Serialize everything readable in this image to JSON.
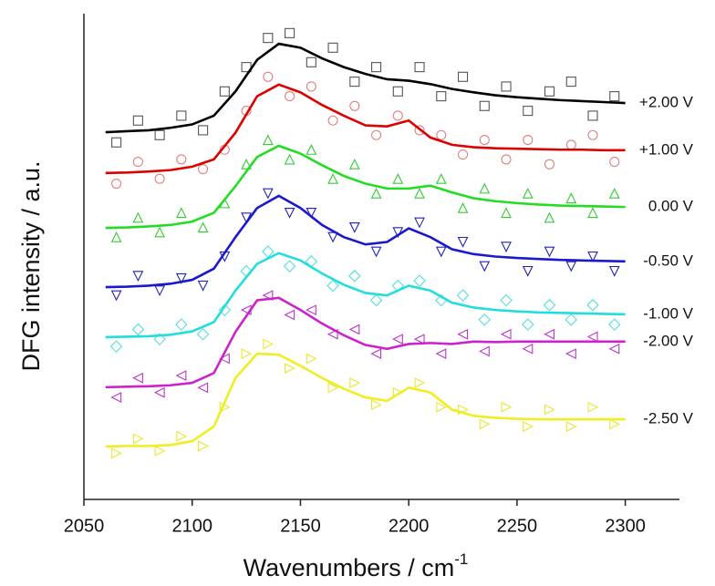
{
  "chart_data": {
    "type": "line",
    "xlabel": "Wavenumbers / cm",
    "xlabel_sup": "-1",
    "ylabel": "DFG intensity / a.u.",
    "xlim": [
      2050,
      2325
    ],
    "ylim": [
      0,
      10
    ],
    "xticks": [
      2050,
      2100,
      2150,
      2200,
      2250,
      2300
    ],
    "x": [
      2060,
      2070,
      2080,
      2090,
      2100,
      2110,
      2120,
      2130,
      2140,
      2150,
      2160,
      2170,
      2180,
      2190,
      2200,
      2210,
      2220,
      2230,
      2240,
      2250,
      2260,
      2270,
      2280,
      2290,
      2300
    ],
    "points_x": [
      2065,
      2075,
      2085,
      2095,
      2105,
      2115,
      2125,
      2135,
      2145,
      2155,
      2165,
      2175,
      2185,
      2195,
      2205,
      2215,
      2225,
      2235,
      2245,
      2255,
      2265,
      2275,
      2285,
      2295
    ],
    "series": [
      {
        "name": "+2.00 V",
        "color": "#000000",
        "point_color": "#555555",
        "marker": "square",
        "values": [
          7.56,
          7.58,
          7.6,
          7.65,
          7.72,
          7.9,
          8.4,
          9.05,
          9.38,
          9.3,
          9.08,
          8.9,
          8.76,
          8.65,
          8.62,
          8.55,
          8.45,
          8.38,
          8.32,
          8.28,
          8.25,
          8.22,
          8.2,
          8.18,
          8.16
        ],
        "points": [
          7.35,
          7.8,
          7.5,
          7.9,
          7.6,
          8.4,
          8.9,
          9.5,
          9.6,
          9.0,
          9.3,
          8.6,
          8.9,
          8.4,
          8.9,
          8.3,
          8.7,
          8.1,
          8.5,
          8.0,
          8.4,
          8.6,
          7.9,
          8.3
        ]
      },
      {
        "name": "+1.00 V",
        "color": "#dd0000",
        "point_color": "#e08080",
        "marker": "circle",
        "values": [
          6.72,
          6.73,
          6.75,
          6.78,
          6.85,
          7.0,
          7.55,
          8.3,
          8.54,
          8.38,
          8.12,
          7.9,
          7.7,
          7.68,
          7.8,
          7.45,
          7.3,
          7.25,
          7.23,
          7.22,
          7.21,
          7.2,
          7.2,
          7.19,
          7.19
        ],
        "points": [
          6.5,
          6.95,
          6.6,
          7.0,
          6.8,
          7.2,
          8.0,
          8.7,
          8.3,
          8.5,
          7.8,
          8.1,
          7.5,
          7.9,
          7.6,
          7.5,
          7.1,
          7.4,
          7.0,
          7.4,
          6.9,
          7.3,
          7.5,
          6.95
        ]
      },
      {
        "name": "0.00 V",
        "color": "#22dd22",
        "point_color": "#33cc33",
        "marker": "triangle-up",
        "values": [
          5.59,
          5.6,
          5.62,
          5.65,
          5.72,
          5.9,
          6.45,
          7.05,
          7.28,
          7.12,
          6.88,
          6.66,
          6.5,
          6.4,
          6.4,
          6.46,
          6.32,
          6.2,
          6.14,
          6.1,
          6.07,
          6.05,
          6.04,
          6.03,
          6.02
        ],
        "points": [
          5.4,
          5.8,
          5.5,
          5.9,
          5.6,
          6.1,
          6.9,
          7.4,
          7.0,
          7.2,
          6.6,
          6.9,
          6.3,
          6.6,
          6.3,
          6.6,
          6.0,
          6.4,
          5.9,
          6.3,
          5.8,
          6.2,
          5.9,
          6.3
        ]
      },
      {
        "name": "-0.50 V",
        "color": "#1a1acc",
        "point_color": "#2222bb",
        "marker": "triangle-down",
        "values": [
          4.37,
          4.38,
          4.4,
          4.44,
          4.52,
          4.75,
          5.4,
          6.0,
          6.25,
          6.0,
          5.65,
          5.4,
          5.25,
          5.3,
          5.58,
          5.4,
          5.15,
          5.05,
          5.0,
          4.97,
          4.95,
          4.93,
          4.92,
          4.91,
          4.9
        ],
        "points": [
          4.2,
          4.6,
          4.3,
          4.55,
          4.4,
          5.0,
          5.8,
          6.3,
          5.9,
          5.9,
          5.4,
          5.6,
          5.1,
          5.5,
          5.7,
          5.1,
          5.3,
          4.8,
          5.2,
          4.7,
          5.1,
          4.8,
          5.0,
          4.7
        ]
      },
      {
        "name": "-1.00 V",
        "color": "#22dddd",
        "point_color": "#55dddd",
        "marker": "diamond",
        "values": [
          3.34,
          3.35,
          3.36,
          3.39,
          3.46,
          3.65,
          4.3,
          4.85,
          5.07,
          4.92,
          4.65,
          4.42,
          4.25,
          4.2,
          4.4,
          4.3,
          4.05,
          3.95,
          3.9,
          3.87,
          3.85,
          3.84,
          3.83,
          3.82,
          3.81
        ],
        "points": [
          3.15,
          3.5,
          3.3,
          3.6,
          3.4,
          3.9,
          4.7,
          5.1,
          4.8,
          4.9,
          4.4,
          4.6,
          4.1,
          4.4,
          4.5,
          4.1,
          4.2,
          3.7,
          4.1,
          3.6,
          4.0,
          3.7,
          4.0,
          3.6
        ]
      },
      {
        "name": "-2.00 V",
        "color": "#cc22cc",
        "point_color": "#bb33cc",
        "marker": "triangle-left",
        "values": [
          2.31,
          2.32,
          2.33,
          2.35,
          2.4,
          2.6,
          3.45,
          4.1,
          4.15,
          3.9,
          3.62,
          3.38,
          3.18,
          3.1,
          3.2,
          3.22,
          3.2,
          3.25,
          3.24,
          3.25,
          3.25,
          3.25,
          3.25,
          3.25,
          3.25
        ],
        "points": [
          2.1,
          2.5,
          2.2,
          2.55,
          2.3,
          2.9,
          3.9,
          4.2,
          3.8,
          3.9,
          3.4,
          3.5,
          3.0,
          3.3,
          3.3,
          3.0,
          3.4,
          3.05,
          3.4,
          3.1,
          3.4,
          3.0,
          3.35,
          3.1
        ]
      },
      {
        "name": "-2.50 V",
        "color": "#eeee22",
        "point_color": "#e8e830",
        "marker": "triangle-right",
        "values": [
          1.09,
          1.1,
          1.1,
          1.12,
          1.2,
          1.5,
          2.5,
          3.0,
          2.98,
          2.75,
          2.5,
          2.28,
          2.1,
          2.03,
          2.3,
          2.2,
          1.85,
          1.72,
          1.68,
          1.66,
          1.65,
          1.65,
          1.65,
          1.65,
          1.65
        ],
        "points": [
          0.95,
          1.25,
          1.0,
          1.3,
          1.1,
          1.9,
          3.0,
          3.2,
          2.7,
          2.9,
          2.3,
          2.4,
          1.95,
          2.2,
          2.4,
          1.9,
          1.85,
          1.55,
          1.9,
          1.5,
          1.85,
          1.5,
          1.9,
          1.55
        ]
      }
    ]
  }
}
